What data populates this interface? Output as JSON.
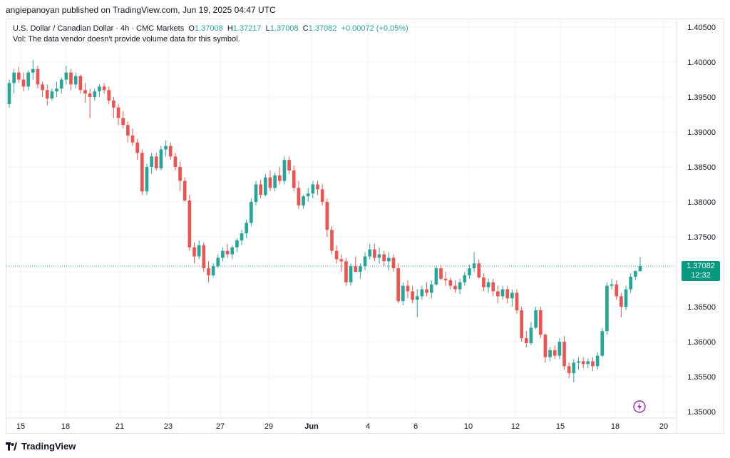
{
  "header": {
    "published_by": "angiepanoyan published on TradingView.com, Jun 19, 2025 04:47 UTC"
  },
  "legend": {
    "symbol": "U.S. Dollar / Canadian Dollar · 4h · CMC Markets",
    "o_label": "O",
    "o_value": "1.37008",
    "h_label": "H",
    "h_value": "1.37217",
    "l_label": "L",
    "l_value": "1.37008",
    "c_label": "C",
    "c_value": "1.37082",
    "change": "+0.00072 (+0.05%)",
    "volume_note": "Vol: The data vendor doesn't provide volume data for this symbol."
  },
  "last_price": {
    "price": "1.37082",
    "countdown": "12:32"
  },
  "footer": {
    "brand": "TradingView"
  },
  "colors": {
    "up": "#26a69a",
    "down": "#ef5350",
    "grid": "#f0f3fa",
    "text": "#131722",
    "price_tag": "#089981"
  },
  "chart_data": {
    "type": "candlestick",
    "symbol": "U.S. Dollar / Canadian Dollar",
    "interval": "4h",
    "y_ticks": [
      "1.40500",
      "1.40000",
      "1.39500",
      "1.39000",
      "1.38500",
      "1.38000",
      "1.37500",
      "1.37000",
      "1.36500",
      "1.36000",
      "1.35500",
      "1.35000"
    ],
    "x_ticks": [
      "15",
      "18",
      "21",
      "23",
      "27",
      "29",
      "Jun",
      "4",
      "6",
      "10",
      "12",
      "15",
      "18",
      "20"
    ],
    "ylim": [
      1.349,
      1.406
    ],
    "grid": true,
    "last_price": 1.37082,
    "candles": [
      [
        1.394,
        1.3975,
        1.3935,
        1.397
      ],
      [
        1.397,
        1.399,
        1.3955,
        1.3985
      ],
      [
        1.3985,
        1.3993,
        1.397,
        1.3975
      ],
      [
        1.3975,
        1.3985,
        1.3958,
        1.3965
      ],
      [
        1.3965,
        1.3988,
        1.396,
        1.3985
      ],
      [
        1.3985,
        1.4003,
        1.3975,
        1.399
      ],
      [
        1.399,
        1.3995,
        1.3962,
        1.3968
      ],
      [
        1.3968,
        1.3972,
        1.395,
        1.396
      ],
      [
        1.396,
        1.3968,
        1.3938,
        1.3948
      ],
      [
        1.3948,
        1.3962,
        1.3945,
        1.3958
      ],
      [
        1.3958,
        1.3972,
        1.395,
        1.3962
      ],
      [
        1.3962,
        1.3978,
        1.3955,
        1.3975
      ],
      [
        1.3975,
        1.3995,
        1.3968,
        1.3985
      ],
      [
        1.3985,
        1.399,
        1.396,
        1.3968
      ],
      [
        1.3968,
        1.3985,
        1.3962,
        1.398
      ],
      [
        1.398,
        1.3982,
        1.3955,
        1.396
      ],
      [
        1.396,
        1.397,
        1.3942,
        1.3955
      ],
      [
        1.3955,
        1.3962,
        1.392,
        1.395
      ],
      [
        1.395,
        1.3962,
        1.3945,
        1.3958
      ],
      [
        1.3958,
        1.3968,
        1.395,
        1.3965
      ],
      [
        1.3965,
        1.397,
        1.3955,
        1.396
      ],
      [
        1.396,
        1.3965,
        1.394,
        1.3945
      ],
      [
        1.3945,
        1.395,
        1.392,
        1.3935
      ],
      [
        1.3935,
        1.394,
        1.391,
        1.392
      ],
      [
        1.392,
        1.393,
        1.3905,
        1.391
      ],
      [
        1.391,
        1.3915,
        1.3885,
        1.3895
      ],
      [
        1.3895,
        1.3905,
        1.388,
        1.3885
      ],
      [
        1.3885,
        1.389,
        1.386,
        1.387
      ],
      [
        1.387,
        1.3875,
        1.381,
        1.3815
      ],
      [
        1.3815,
        1.3855,
        1.381,
        1.385
      ],
      [
        1.385,
        1.387,
        1.384,
        1.3865
      ],
      [
        1.3865,
        1.387,
        1.3845,
        1.3848
      ],
      [
        1.3848,
        1.388,
        1.3845,
        1.3875
      ],
      [
        1.3875,
        1.3888,
        1.3865,
        1.388
      ],
      [
        1.388,
        1.3885,
        1.386,
        1.3865
      ],
      [
        1.3865,
        1.387,
        1.3845,
        1.385
      ],
      [
        1.385,
        1.3858,
        1.3815,
        1.383
      ],
      [
        1.383,
        1.3835,
        1.38,
        1.3802
      ],
      [
        1.3802,
        1.381,
        1.373,
        1.3735
      ],
      [
        1.3735,
        1.3742,
        1.3712,
        1.3722
      ],
      [
        1.3722,
        1.3745,
        1.3718,
        1.3738
      ],
      [
        1.3738,
        1.3742,
        1.37,
        1.3705
      ],
      [
        1.3705,
        1.3715,
        1.3685,
        1.3695
      ],
      [
        1.3695,
        1.3712,
        1.3692,
        1.3708
      ],
      [
        1.3708,
        1.3725,
        1.3705,
        1.372
      ],
      [
        1.372,
        1.3735,
        1.3715,
        1.373
      ],
      [
        1.373,
        1.374,
        1.372,
        1.3725
      ],
      [
        1.3725,
        1.3738,
        1.3718,
        1.3735
      ],
      [
        1.3735,
        1.3748,
        1.3728,
        1.3745
      ],
      [
        1.3745,
        1.376,
        1.3738,
        1.3755
      ],
      [
        1.3755,
        1.3775,
        1.3748,
        1.377
      ],
      [
        1.377,
        1.3805,
        1.3765,
        1.38
      ],
      [
        1.38,
        1.383,
        1.3795,
        1.3825
      ],
      [
        1.3825,
        1.3832,
        1.3805,
        1.381
      ],
      [
        1.381,
        1.384,
        1.3808,
        1.3835
      ],
      [
        1.3835,
        1.3845,
        1.3815,
        1.382
      ],
      [
        1.382,
        1.3842,
        1.3815,
        1.3838
      ],
      [
        1.3838,
        1.385,
        1.3825,
        1.383
      ],
      [
        1.383,
        1.3865,
        1.3825,
        1.386
      ],
      [
        1.386,
        1.3865,
        1.384,
        1.3845
      ],
      [
        1.3845,
        1.3852,
        1.3815,
        1.382
      ],
      [
        1.382,
        1.383,
        1.379,
        1.3795
      ],
      [
        1.3795,
        1.381,
        1.379,
        1.3808
      ],
      [
        1.3808,
        1.382,
        1.38,
        1.3812
      ],
      [
        1.3812,
        1.383,
        1.3805,
        1.3825
      ],
      [
        1.3825,
        1.383,
        1.381,
        1.3818
      ],
      [
        1.3818,
        1.3825,
        1.3795,
        1.38
      ],
      [
        1.38,
        1.3805,
        1.375,
        1.376
      ],
      [
        1.376,
        1.3765,
        1.3725,
        1.373
      ],
      [
        1.373,
        1.3738,
        1.3712,
        1.3718
      ],
      [
        1.3718,
        1.3725,
        1.37,
        1.3715
      ],
      [
        1.3715,
        1.372,
        1.368,
        1.3685
      ],
      [
        1.3685,
        1.3712,
        1.368,
        1.3708
      ],
      [
        1.3708,
        1.3722,
        1.37,
        1.37
      ],
      [
        1.37,
        1.3712,
        1.369,
        1.3708
      ],
      [
        1.3708,
        1.3728,
        1.3702,
        1.3722
      ],
      [
        1.3722,
        1.374,
        1.3718,
        1.3732
      ],
      [
        1.3732,
        1.374,
        1.3715,
        1.372
      ],
      [
        1.372,
        1.3735,
        1.3712,
        1.3725
      ],
      [
        1.3725,
        1.373,
        1.3708,
        1.3715
      ],
      [
        1.3715,
        1.3728,
        1.3702,
        1.372
      ],
      [
        1.372,
        1.3725,
        1.37,
        1.3705
      ],
      [
        1.3705,
        1.3712,
        1.3655,
        1.3658
      ],
      [
        1.3658,
        1.3685,
        1.3652,
        1.368
      ],
      [
        1.368,
        1.3688,
        1.3662,
        1.3672
      ],
      [
        1.3672,
        1.368,
        1.3655,
        1.366
      ],
      [
        1.366,
        1.3675,
        1.3635,
        1.3665
      ],
      [
        1.3665,
        1.368,
        1.366,
        1.3675
      ],
      [
        1.3675,
        1.3685,
        1.3665,
        1.367
      ],
      [
        1.367,
        1.3688,
        1.3662,
        1.3682
      ],
      [
        1.3682,
        1.3708,
        1.368,
        1.3705
      ],
      [
        1.3705,
        1.371,
        1.3688,
        1.369
      ],
      [
        1.369,
        1.37,
        1.368,
        1.3688
      ],
      [
        1.3688,
        1.3692,
        1.3675,
        1.368
      ],
      [
        1.368,
        1.3688,
        1.367,
        1.3675
      ],
      [
        1.3675,
        1.369,
        1.3668,
        1.3685
      ],
      [
        1.3685,
        1.37,
        1.368,
        1.3695
      ],
      [
        1.3695,
        1.371,
        1.369,
        1.3705
      ],
      [
        1.3705,
        1.3728,
        1.37,
        1.3712
      ],
      [
        1.3712,
        1.3718,
        1.369,
        1.3692
      ],
      [
        1.3692,
        1.3698,
        1.3672,
        1.3678
      ],
      [
        1.3678,
        1.369,
        1.367,
        1.3685
      ],
      [
        1.3685,
        1.369,
        1.3665,
        1.3672
      ],
      [
        1.3672,
        1.368,
        1.3655,
        1.3665
      ],
      [
        1.3665,
        1.368,
        1.366,
        1.3675
      ],
      [
        1.3675,
        1.368,
        1.3655,
        1.3662
      ],
      [
        1.3662,
        1.3675,
        1.365,
        1.367
      ],
      [
        1.367,
        1.3675,
        1.364,
        1.3645
      ],
      [
        1.3645,
        1.365,
        1.36,
        1.3605
      ],
      [
        1.3605,
        1.3615,
        1.3592,
        1.3598
      ],
      [
        1.3598,
        1.3628,
        1.3595,
        1.362
      ],
      [
        1.362,
        1.365,
        1.3618,
        1.3645
      ],
      [
        1.3645,
        1.365,
        1.3605,
        1.361
      ],
      [
        1.361,
        1.3612,
        1.357,
        1.3578
      ],
      [
        1.3578,
        1.3592,
        1.3572,
        1.3588
      ],
      [
        1.3588,
        1.3595,
        1.3575,
        1.358
      ],
      [
        1.358,
        1.3605,
        1.3575,
        1.36
      ],
      [
        1.36,
        1.3608,
        1.356,
        1.3565
      ],
      [
        1.3565,
        1.357,
        1.3548,
        1.3555
      ],
      [
        1.3555,
        1.3575,
        1.3542,
        1.357
      ],
      [
        1.357,
        1.3578,
        1.356,
        1.3572
      ],
      [
        1.3572,
        1.3578,
        1.3562,
        1.3568
      ],
      [
        1.3568,
        1.3576,
        1.3562,
        1.3572
      ],
      [
        1.3572,
        1.3578,
        1.3558,
        1.3565
      ],
      [
        1.3565,
        1.3585,
        1.356,
        1.358
      ],
      [
        1.358,
        1.362,
        1.3578,
        1.3615
      ],
      [
        1.3615,
        1.3685,
        1.361,
        1.368
      ],
      [
        1.368,
        1.369,
        1.3675,
        1.3682
      ],
      [
        1.3682,
        1.3688,
        1.366,
        1.3665
      ],
      [
        1.3665,
        1.367,
        1.3635,
        1.365
      ],
      [
        1.365,
        1.368,
        1.3645,
        1.3675
      ],
      [
        1.3675,
        1.3698,
        1.367,
        1.3693
      ],
      [
        1.3693,
        1.3702,
        1.3688,
        1.3701
      ],
      [
        1.37008,
        1.37217,
        1.37008,
        1.37082
      ]
    ]
  }
}
